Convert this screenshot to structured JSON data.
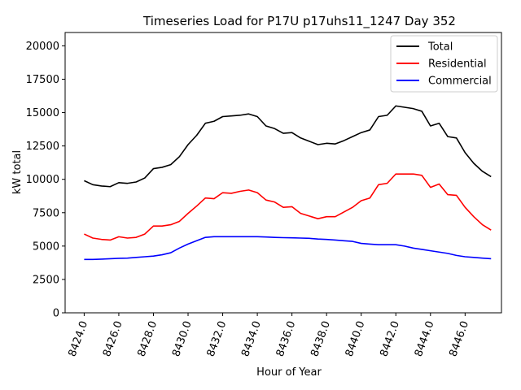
{
  "chart_data": {
    "type": "line",
    "title": "Timeseries Load for P17U p17uhs11_1247  Day 352",
    "xlabel": "Hour of Year",
    "ylabel": "kW total",
    "xlim": [
      8422.9,
      8448.1
    ],
    "ylim": [
      0,
      21000
    ],
    "xticks": [
      8424,
      8426,
      8428,
      8430,
      8432,
      8434,
      8436,
      8438,
      8440,
      8442,
      8444,
      8446
    ],
    "xtick_labels": [
      "8424.0",
      "8426.0",
      "8428.0",
      "8430.0",
      "8432.0",
      "8434.0",
      "8436.0",
      "8438.0",
      "8440.0",
      "8442.0",
      "8444.0",
      "8446.0"
    ],
    "yticks": [
      0,
      2500,
      5000,
      7500,
      10000,
      12500,
      15000,
      17500,
      20000
    ],
    "ytick_labels": [
      "0",
      "2500",
      "5000",
      "7500",
      "10000",
      "12500",
      "15000",
      "17500",
      "20000"
    ],
    "legend_position": "top-right",
    "x": [
      8424,
      8424.5,
      8425,
      8425.5,
      8426,
      8426.5,
      8427,
      8427.5,
      8428,
      8428.5,
      8429,
      8429.5,
      8430,
      8430.5,
      8431,
      8431.5,
      8432,
      8432.5,
      8433,
      8433.5,
      8434,
      8434.5,
      8435,
      8435.5,
      8436,
      8436.5,
      8437,
      8437.5,
      8438,
      8438.5,
      8439,
      8439.5,
      8440,
      8440.5,
      8441,
      8441.5,
      8442,
      8442.5,
      8443,
      8443.5,
      8444,
      8444.5,
      8445,
      8445.5,
      8446,
      8446.5,
      8447,
      8447.5
    ],
    "series": [
      {
        "name": "Total",
        "color": "#000000",
        "values": [
          9900,
          9600,
          9500,
          9450,
          9750,
          9700,
          9800,
          10100,
          10800,
          10900,
          11100,
          11700,
          12600,
          13300,
          14200,
          14350,
          14700,
          14750,
          14800,
          14900,
          14700,
          14000,
          13800,
          13450,
          13500,
          13100,
          12850,
          12600,
          12700,
          12650,
          12900,
          13200,
          13500,
          13700,
          14700,
          14800,
          15500,
          15400,
          15300,
          15100,
          14000,
          14200,
          13200,
          13100,
          12000,
          11200,
          10600,
          10200
        ]
      },
      {
        "name": "Residential",
        "color": "#ff0000",
        "values": [
          5900,
          5600,
          5500,
          5450,
          5700,
          5600,
          5650,
          5900,
          6500,
          6500,
          6600,
          6850,
          7450,
          8000,
          8600,
          8550,
          9000,
          8950,
          9100,
          9200,
          9000,
          8450,
          8300,
          7900,
          7950,
          7450,
          7250,
          7050,
          7200,
          7200,
          7550,
          7900,
          8400,
          8600,
          9600,
          9700,
          10400,
          10400,
          10400,
          10300,
          9400,
          9650,
          8850,
          8800,
          7900,
          7200,
          6600,
          6200
        ]
      },
      {
        "name": "Commercial",
        "color": "#0000ff",
        "values": [
          4000,
          4000,
          4020,
          4050,
          4080,
          4100,
          4150,
          4200,
          4250,
          4350,
          4500,
          4850,
          5150,
          5400,
          5650,
          5700,
          5700,
          5700,
          5700,
          5700,
          5700,
          5680,
          5650,
          5630,
          5620,
          5600,
          5580,
          5530,
          5500,
          5450,
          5400,
          5350,
          5200,
          5150,
          5100,
          5100,
          5100,
          5000,
          4850,
          4750,
          4650,
          4550,
          4450,
          4300,
          4200,
          4150,
          4100,
          4050
        ]
      }
    ]
  }
}
